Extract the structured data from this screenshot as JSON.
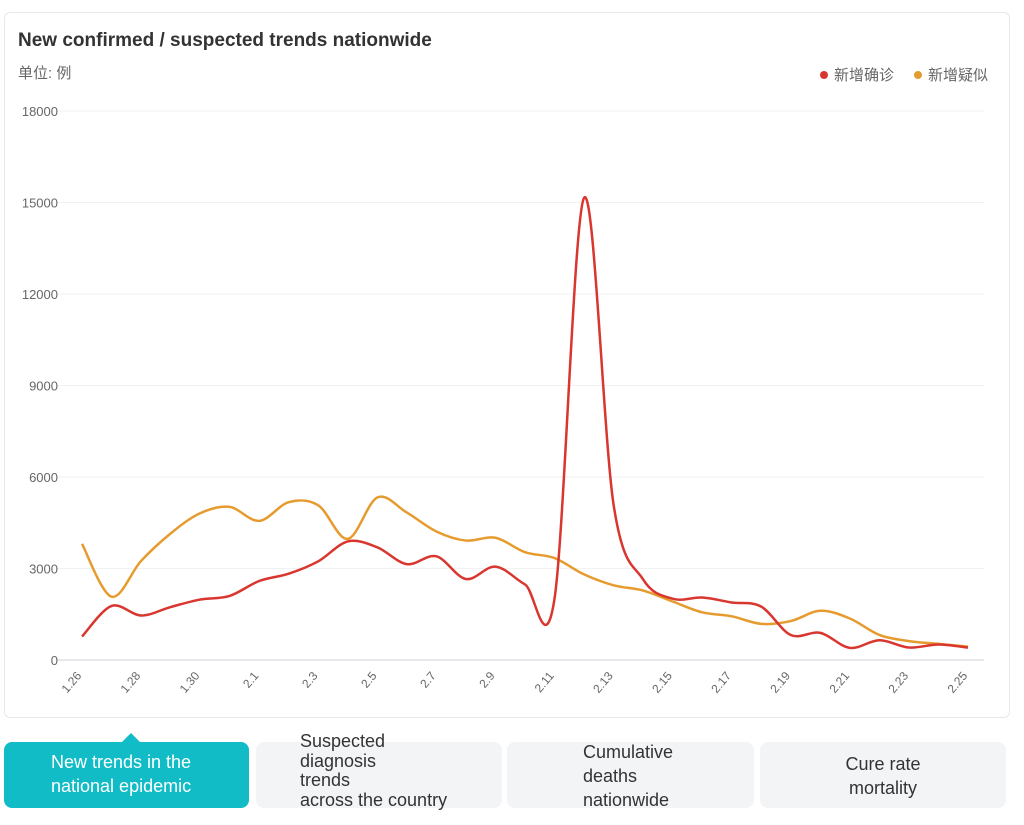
{
  "chart_data": {
    "type": "line",
    "title": "New confirmed / suspected trends nationwide",
    "subtitle": "单位: 例",
    "ylim": [
      0,
      18000
    ],
    "yticks": [
      0,
      3000,
      6000,
      9000,
      12000,
      15000,
      18000
    ],
    "grid": true,
    "legend_position": "top-right",
    "x": [
      "1.26",
      "1.27",
      "1.28",
      "1.29",
      "1.30",
      "1.31",
      "2.1",
      "2.2",
      "2.3",
      "2.4",
      "2.5",
      "2.6",
      "2.7",
      "2.8",
      "2.9",
      "2.10",
      "2.11",
      "2.12",
      "2.13",
      "2.14",
      "2.15",
      "2.16",
      "2.17",
      "2.18",
      "2.19",
      "2.20",
      "2.21",
      "2.22",
      "2.23",
      "2.24",
      "2.25"
    ],
    "xtick_labels": [
      "1.26",
      "1.28",
      "1.30",
      "2.1",
      "2.3",
      "2.5",
      "2.7",
      "2.9",
      "2.11",
      "2.13",
      "2.15",
      "2.17",
      "2.19",
      "2.21",
      "2.23",
      "2.25"
    ],
    "series": [
      {
        "name": "新增确诊",
        "color": "#d9362f",
        "values": [
          769,
          1771,
          1459,
          1737,
          1981,
          2102,
          2590,
          2829,
          3235,
          3887,
          3694,
          3143,
          3399,
          2656,
          3062,
          2478,
          2015,
          15152,
          5090,
          2641,
          2009,
          2048,
          1886,
          1749,
          820,
          889,
          397,
          648,
          409,
          508,
          406
        ]
      },
      {
        "name": "新增疑似",
        "color": "#e69b2f",
        "values": [
          3806,
          2077,
          3248,
          4148,
          4812,
          5019,
          4562,
          5173,
          5072,
          3971,
          5328,
          4833,
          4214,
          3916,
          4008,
          3536,
          3342,
          2807,
          2450,
          2277,
          1918,
          1563,
          1432,
          1185,
          1277,
          1614,
          1361,
          822,
          620,
          530,
          439
        ]
      }
    ]
  },
  "tabs": [
    {
      "label": "New trends in the\nnational epidemic"
    },
    {
      "label": "Suspected\ndiagnosis\ntrends\nacross the country"
    },
    {
      "label": "Cumulative\ndeaths\nnationwide"
    },
    {
      "label": "Cure rate\nmortality"
    }
  ]
}
